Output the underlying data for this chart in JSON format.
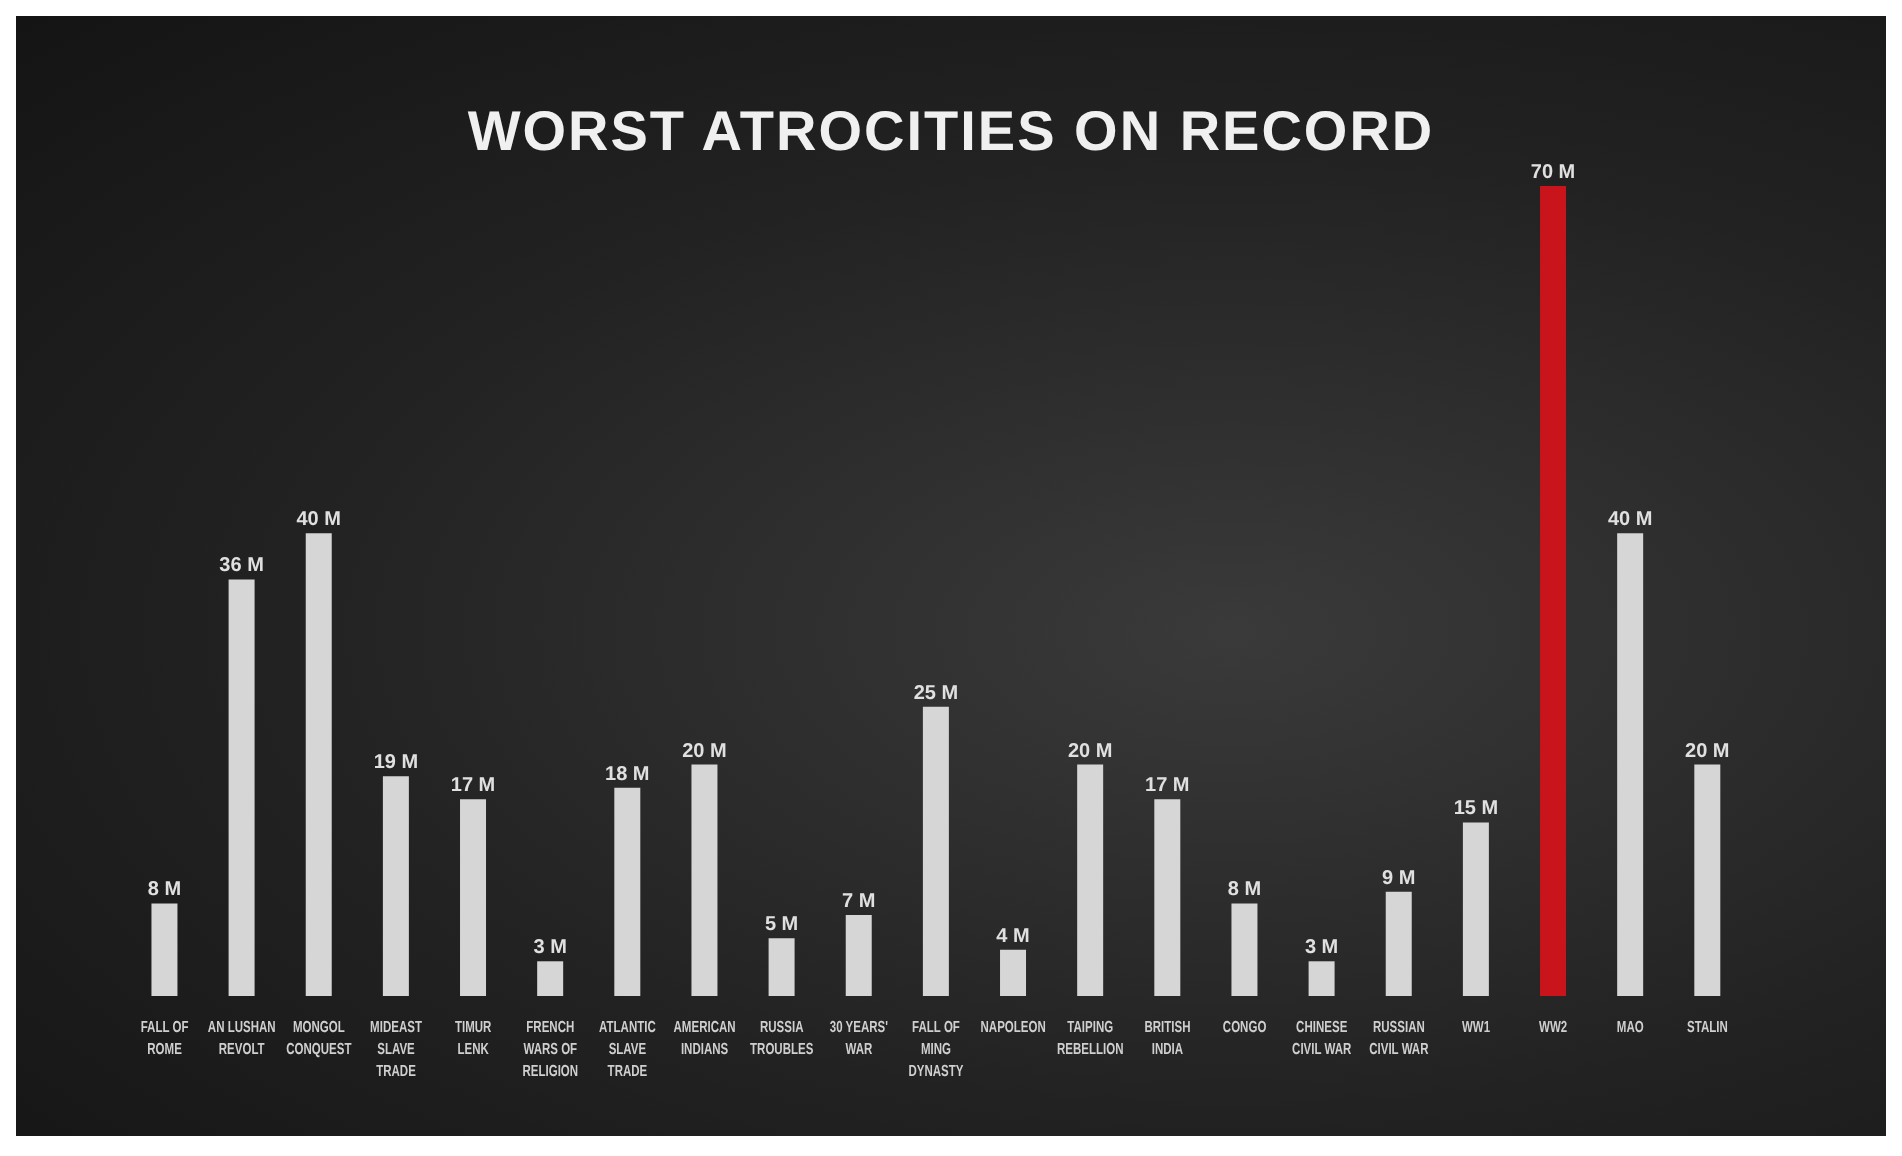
{
  "chart_data": {
    "type": "bar",
    "title": "WORST ATROCITIES ON RECORD",
    "categories": [
      "FALL OF ROME",
      "AN LUSHAN REVOLT",
      "MONGOL CONQUEST",
      "MIDEAST SLAVE TRADE",
      "TIMUR LENK",
      "FRENCH WARS OF RELIGION",
      "ATLANTIC SLAVE TRADE",
      "AMERICAN INDIANS",
      "RUSSIA TROUBLES",
      "30 YEARS' WAR",
      "FALL OF MING DYNASTY",
      "NAPOLEON",
      "TAIPING REBELLION",
      "BRITISH INDIA",
      "CONGO",
      "CHINESE CIVIL WAR",
      "RUSSIAN CIVIL WAR",
      "WW1",
      "WW2",
      "MAO",
      "STALIN"
    ],
    "values": [
      8,
      36,
      40,
      19,
      17,
      3,
      18,
      20,
      5,
      7,
      25,
      4,
      20,
      17,
      8,
      3,
      9,
      15,
      70,
      40,
      20
    ],
    "value_labels": [
      "8 M",
      "36 M",
      "40 M",
      "19 M",
      "17 M",
      "3 M",
      "18 M",
      "20 M",
      "5 M",
      "7 M",
      "25 M",
      "4 M",
      "20 M",
      "17 M",
      "8 M",
      "3 M",
      "9 M",
      "15 M",
      "70 M",
      "40 M",
      "20 M"
    ],
    "colors": [
      "#d6d6d6",
      "#d6d6d6",
      "#d6d6d6",
      "#d6d6d6",
      "#d6d6d6",
      "#d6d6d6",
      "#d6d6d6",
      "#d6d6d6",
      "#d6d6d6",
      "#d6d6d6",
      "#d6d6d6",
      "#d6d6d6",
      "#d6d6d6",
      "#d6d6d6",
      "#d6d6d6",
      "#d6d6d6",
      "#d6d6d6",
      "#d6d6d6",
      "#c8141a",
      "#d6d6d6",
      "#d6d6d6"
    ]
  }
}
